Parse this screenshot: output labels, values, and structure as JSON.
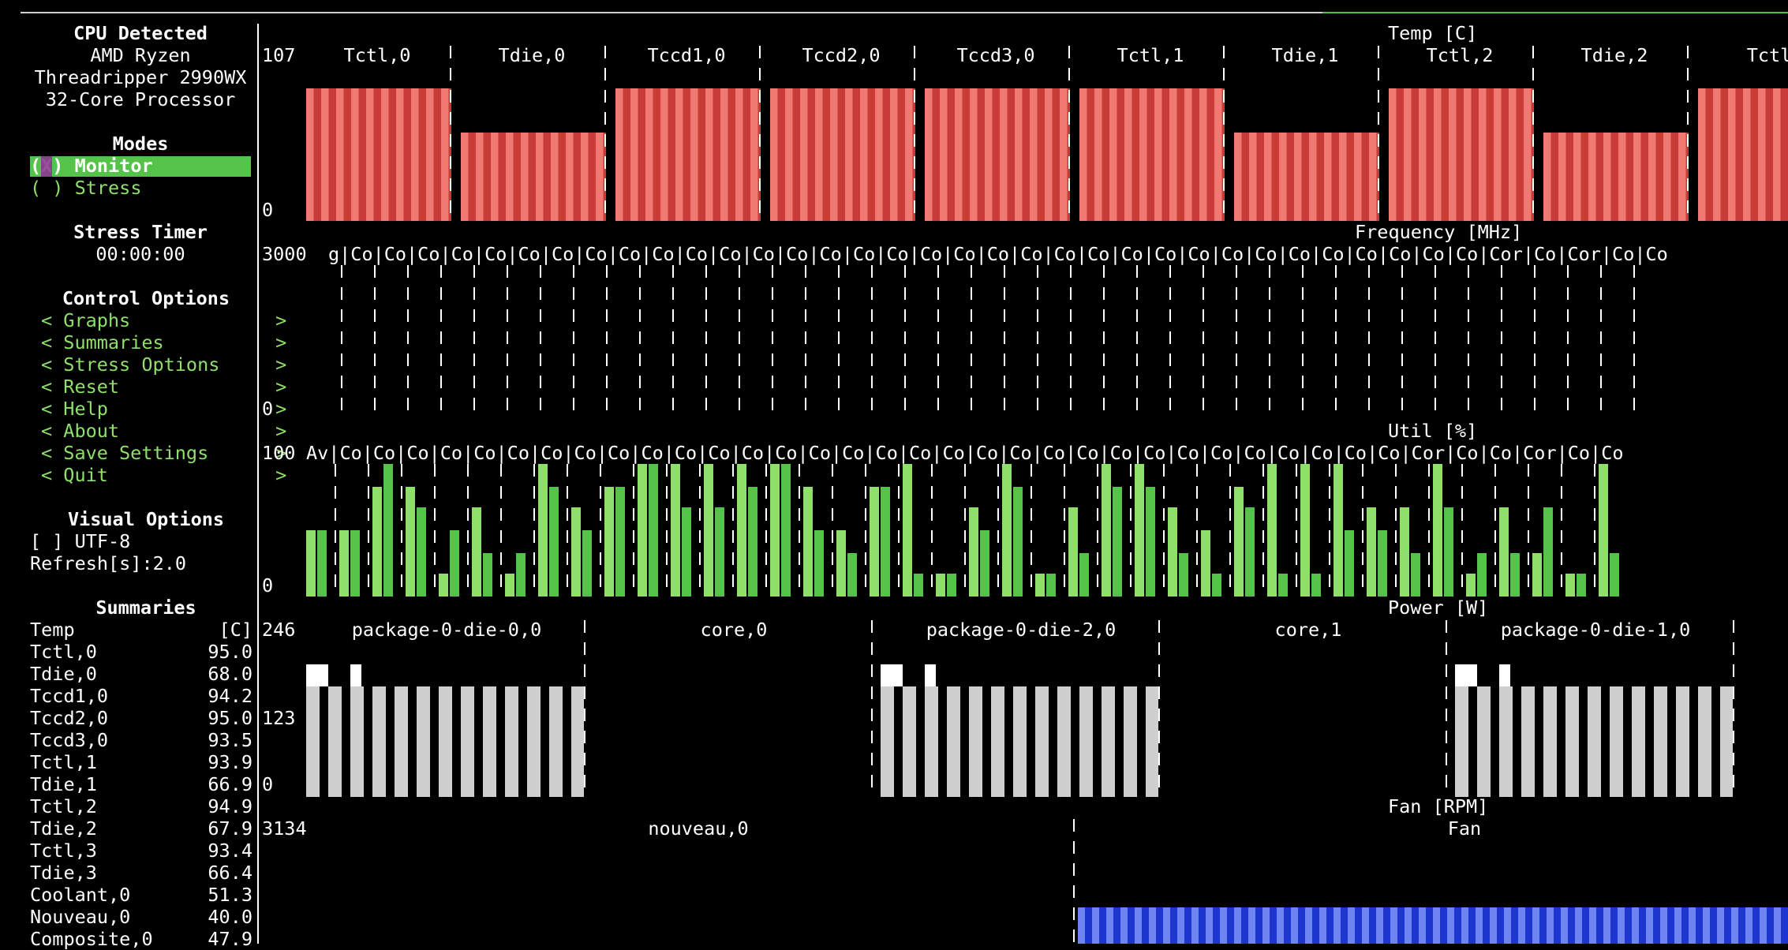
{
  "sidebar": {
    "cpu_title": "CPU Detected",
    "cpu_name_lines": [
      "AMD Ryzen",
      "Threadripper 2990WX",
      "32-Core Processor"
    ],
    "modes_title": "Modes",
    "modes": [
      {
        "label": "(X) Monitor",
        "selected": true
      },
      {
        "label": "( ) Stress",
        "selected": false
      }
    ],
    "stress_timer_title": "Stress Timer",
    "stress_timer_value": "00:00:00",
    "control_title": "Control Options",
    "control_options": [
      "< Graphs             >",
      "< Summaries          >",
      "< Stress Options     >",
      "< Reset              >",
      "< Help               >",
      "< About              >",
      "< Save Settings      >",
      "< Quit               >"
    ],
    "visual_title": "Visual Options",
    "utf8_checkbox": "[ ] UTF-8",
    "refresh": "Refresh[s]:2.0",
    "summaries_title": "Summaries",
    "summary_header": {
      "name": "Temp",
      "unit": "[C]"
    },
    "summary_rows": [
      {
        "name": "Tctl,0",
        "value": "95.0"
      },
      {
        "name": "Tdie,0",
        "value": "68.0"
      },
      {
        "name": "Tccd1,0",
        "value": "94.2"
      },
      {
        "name": "Tccd2,0",
        "value": "95.0"
      },
      {
        "name": "Tccd3,0",
        "value": "93.5"
      },
      {
        "name": "Tctl,1",
        "value": "93.9"
      },
      {
        "name": "Tdie,1",
        "value": "66.9"
      },
      {
        "name": "Tctl,2",
        "value": "94.9"
      },
      {
        "name": "Tdie,2",
        "value": "67.9"
      },
      {
        "name": "Tctl,3",
        "value": "93.4"
      },
      {
        "name": "Tdie,3",
        "value": "66.4"
      },
      {
        "name": "Coolant,0",
        "value": "51.3"
      },
      {
        "name": "Nouveau,0",
        "value": "40.0"
      },
      {
        "name": "Composite,0",
        "value": "47.9"
      }
    ]
  },
  "temp": {
    "title": "Temp [C]",
    "ymax": "107",
    "ymin": "0",
    "sensors": [
      "Tctl,0",
      "Tdie,0",
      "Tccd1,0",
      "Tccd2,0",
      "Tccd3,0",
      "Tctl,1",
      "Tdie,1",
      "Tctl,2",
      "Tdie,2",
      "Tctl"
    ],
    "levels": [
      95.0,
      68.0,
      94.2,
      95.0,
      93.5,
      93.9,
      66.9,
      94.9,
      67.9,
      93.4
    ]
  },
  "freq": {
    "title": "Frequency [MHz]",
    "ymax": "3000",
    "ymin": "0",
    "header_text": "g|Co|Co|Co|Co|Co|Co|Co|Co|Co|Co|Co|Co|Co|Co|Co|Co|Co|Co|Co|Co|Co|Co|Co|Co|Co|Co|Co|Co|Co|Co|Co|Co|Co|Co|Cor|Co|Cor|Co|Co"
  },
  "util": {
    "title": "Util [%]",
    "ymax": "100",
    "ymin": "0",
    "header_text": "Av|Co|Co|Co|Co|Co|Co|Co|Co|Co|Co|Co|Co|Co|Co|Co|Co|Co|Co|Co|Co|Co|Co|Co|Co|Co|Co|Co|Co|Co|Co|Co|Co|Cor|Co|Co|Cor|Co|Co",
    "levels": [
      [
        50,
        50
      ],
      [
        50,
        50
      ],
      [
        83,
        100
      ],
      [
        83,
        67
      ],
      [
        17,
        50
      ],
      [
        67,
        33
      ],
      [
        17,
        33
      ],
      [
        100,
        83
      ],
      [
        67,
        50
      ],
      [
        83,
        83
      ],
      [
        100,
        100
      ],
      [
        100,
        67
      ],
      [
        100,
        67
      ],
      [
        100,
        83
      ],
      [
        100,
        100
      ],
      [
        83,
        50
      ],
      [
        50,
        33
      ],
      [
        83,
        83
      ],
      [
        100,
        17
      ],
      [
        17,
        17
      ],
      [
        67,
        50
      ],
      [
        100,
        83
      ],
      [
        17,
        17
      ],
      [
        67,
        33
      ],
      [
        100,
        83
      ],
      [
        100,
        83
      ],
      [
        67,
        33
      ],
      [
        50,
        17
      ],
      [
        83,
        67
      ],
      [
        100,
        17
      ],
      [
        100,
        17
      ],
      [
        100,
        50
      ],
      [
        67,
        50
      ],
      [
        67,
        33
      ],
      [
        100,
        67
      ],
      [
        17,
        33
      ],
      [
        67,
        33
      ],
      [
        33,
        67
      ],
      [
        17,
        17
      ],
      [
        100,
        33
      ]
    ],
    "colors": {
      "light": "#8ee06a",
      "dark": "#55c34a"
    }
  },
  "power": {
    "title": "Power [W]",
    "ymax": "246",
    "ymid": "123",
    "ymin": "0",
    "panels": [
      "package-0-die-0,0",
      "core,0",
      "package-0-die-2,0",
      "core,1",
      "package-0-die-1,0"
    ]
  },
  "fan": {
    "title": "Fan [RPM]",
    "ymax": "3134",
    "left_label": "nouveau,0",
    "right_label": "Fan"
  }
}
